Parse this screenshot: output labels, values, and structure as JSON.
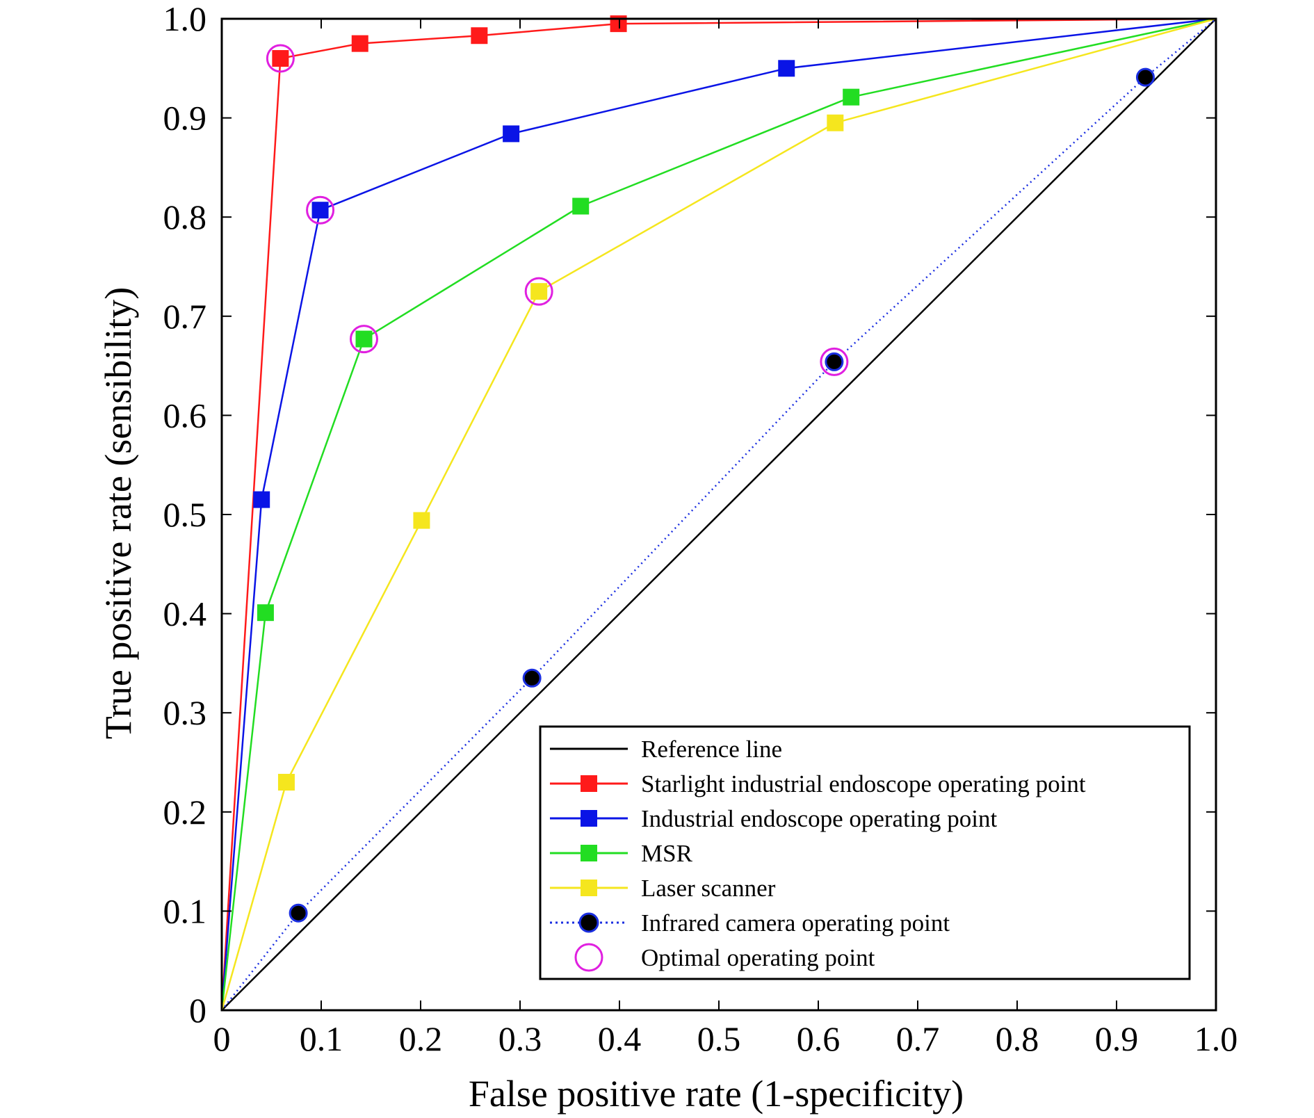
{
  "chart_data": {
    "type": "line",
    "title": "",
    "xlabel": "False positive rate (1-specificity)",
    "ylabel": "True positive rate (sensibility)",
    "xlim": [
      0,
      1
    ],
    "ylim": [
      0,
      1
    ],
    "x_ticks": [
      "0",
      "0.1",
      "0.2",
      "0.3",
      "0.4",
      "0.5",
      "0.6",
      "0.7",
      "0.8",
      "0.9",
      "1.0"
    ],
    "y_ticks": [
      "0",
      "0.1",
      "0.2",
      "0.3",
      "0.4",
      "0.5",
      "0.6",
      "0.7",
      "0.8",
      "0.9",
      "1.0"
    ],
    "grid": false,
    "legend_position": "bottom-right",
    "reference_line": {
      "name": "Reference line",
      "color": "#000000",
      "points": [
        [
          0,
          0
        ],
        [
          1,
          1
        ]
      ]
    },
    "series": [
      {
        "name": "Starlight industrial endoscope operating point",
        "color": "#ff1a1a",
        "marker": "square",
        "line": "solid",
        "points": [
          [
            0,
            0
          ],
          [
            0.059,
            0.96
          ],
          [
            0.139,
            0.975
          ],
          [
            0.259,
            0.983
          ],
          [
            0.399,
            0.995
          ],
          [
            1.0,
            1.0
          ]
        ]
      },
      {
        "name": "Industrial endoscope operating point",
        "color": "#0a14e6",
        "marker": "square",
        "line": "solid",
        "points": [
          [
            0,
            0
          ],
          [
            0.04,
            0.515
          ],
          [
            0.099,
            0.807
          ],
          [
            0.291,
            0.884
          ],
          [
            0.568,
            0.95
          ],
          [
            1.0,
            1.0
          ]
        ]
      },
      {
        "name": "MSR",
        "color": "#22dd22",
        "marker": "square",
        "line": "solid",
        "points": [
          [
            0,
            0
          ],
          [
            0.044,
            0.401
          ],
          [
            0.143,
            0.677
          ],
          [
            0.361,
            0.811
          ],
          [
            0.633,
            0.921
          ],
          [
            1.0,
            1.0
          ]
        ]
      },
      {
        "name": "Laser scanner",
        "color": "#f5e61e",
        "marker": "square",
        "line": "solid",
        "points": [
          [
            0,
            0
          ],
          [
            0.065,
            0.23
          ],
          [
            0.201,
            0.494
          ],
          [
            0.319,
            0.725
          ],
          [
            0.617,
            0.895
          ],
          [
            1.0,
            1.0
          ]
        ]
      },
      {
        "name": "Infrared camera operating point",
        "color": "#1a2ee0",
        "marker": "circle",
        "line": "dotted",
        "points": [
          [
            0,
            0
          ],
          [
            0.077,
            0.098
          ],
          [
            0.312,
            0.335
          ],
          [
            0.616,
            0.654
          ],
          [
            0.929,
            0.941
          ],
          [
            1.0,
            1.0
          ]
        ]
      }
    ],
    "optimal_points": {
      "name": "Optimal operating point",
      "color": "#e020e0",
      "points": [
        [
          0.059,
          0.96
        ],
        [
          0.099,
          0.807
        ],
        [
          0.143,
          0.677
        ],
        [
          0.319,
          0.725
        ],
        [
          0.616,
          0.654
        ]
      ]
    },
    "legend": [
      {
        "label": "Reference line",
        "color": "#000000",
        "marker": "none",
        "line": "solid"
      },
      {
        "label": "Starlight industrial endoscope operating point",
        "color": "#ff1a1a",
        "marker": "square",
        "line": "solid"
      },
      {
        "label": "Industrial endoscope operating point",
        "color": "#0a14e6",
        "marker": "square",
        "line": "solid"
      },
      {
        "label": "MSR",
        "color": "#22dd22",
        "marker": "square",
        "line": "solid"
      },
      {
        "label": "Laser scanner",
        "color": "#f5e61e",
        "marker": "square",
        "line": "solid"
      },
      {
        "label": "Infrared camera operating point",
        "color": "#1a2ee0",
        "marker": "circle",
        "line": "dotted"
      },
      {
        "label": "Optimal operating point",
        "color": "#e020e0",
        "marker": "ring",
        "line": "none"
      }
    ]
  }
}
